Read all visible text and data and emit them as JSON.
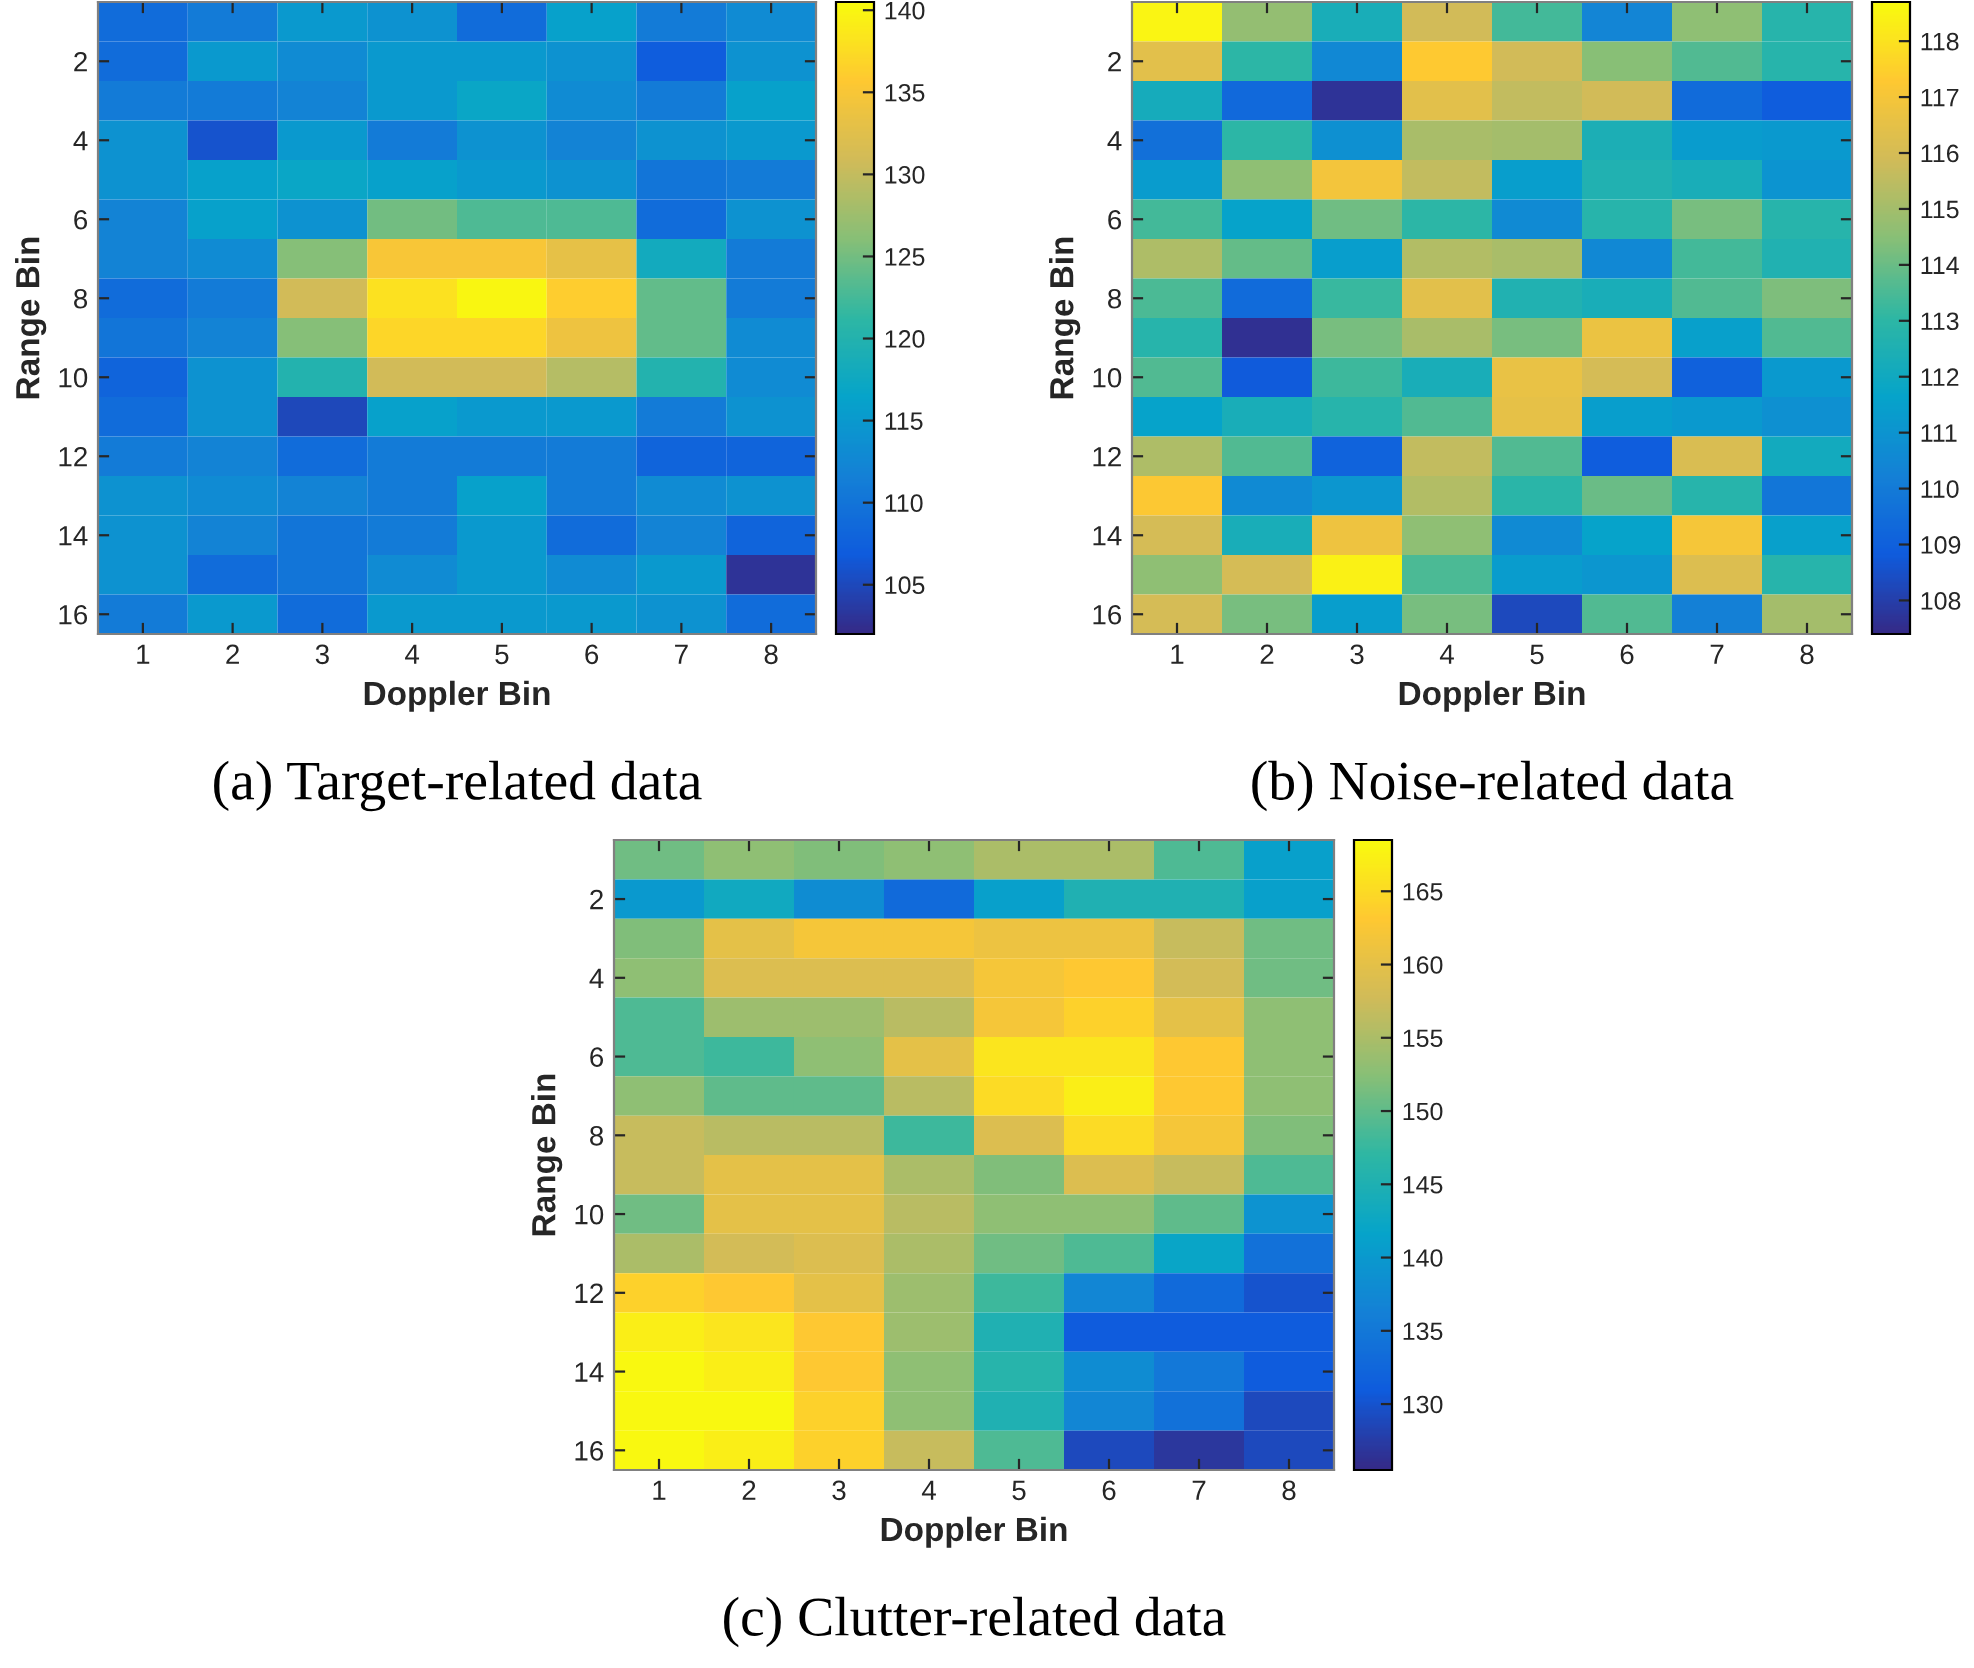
{
  "chart_data": [
    {
      "type": "heatmap",
      "title": "(a) Target-related data",
      "xlabel": "Doppler Bin",
      "ylabel": "Range Bin",
      "categories": [
        "1",
        "2",
        "3",
        "4",
        "5",
        "6",
        "7",
        "8"
      ],
      "y_categories": [
        null,
        "2",
        null,
        "4",
        null,
        "6",
        null,
        "8",
        null,
        "10",
        null,
        "12",
        null,
        "14",
        null,
        "16"
      ],
      "cells": [
        [
          109,
          111,
          115,
          114,
          109,
          116,
          111,
          113
        ],
        [
          109,
          115,
          113,
          115,
          115,
          114,
          107,
          114
        ],
        [
          111,
          111,
          112,
          115,
          117,
          113,
          111,
          116
        ],
        [
          114,
          106,
          115,
          111,
          114,
          112,
          114,
          115
        ],
        [
          114,
          116,
          117,
          116,
          115,
          114,
          110,
          111
        ],
        [
          112,
          116,
          114,
          125,
          123,
          123,
          109,
          114
        ],
        [
          112,
          113,
          126,
          135,
          135,
          133,
          118,
          111
        ],
        [
          109,
          111,
          131,
          138,
          140,
          136,
          124,
          111
        ],
        [
          110,
          112,
          126,
          137,
          137,
          134,
          124,
          113
        ],
        [
          108,
          114,
          120,
          131,
          131,
          129,
          120,
          113
        ],
        [
          109,
          114,
          105,
          116,
          115,
          115,
          111,
          114
        ],
        [
          111,
          112,
          109,
          111,
          111,
          111,
          108,
          108
        ],
        [
          114,
          113,
          112,
          111,
          116,
          111,
          113,
          114
        ],
        [
          114,
          112,
          110,
          111,
          115,
          109,
          112,
          108
        ],
        [
          114,
          109,
          110,
          113,
          115,
          113,
          115,
          103
        ],
        [
          111,
          115,
          109,
          115,
          115,
          115,
          114,
          109
        ]
      ],
      "clim": [
        102,
        140.5
      ],
      "cticks": [
        105,
        110,
        115,
        120,
        125,
        130,
        135,
        140
      ]
    },
    {
      "type": "heatmap",
      "title": "(b) Noise-related data",
      "xlabel": "Doppler Bin",
      "ylabel": "Range Bin",
      "categories": [
        "1",
        "2",
        "3",
        "4",
        "5",
        "6",
        "7",
        "8"
      ],
      "y_categories": [
        null,
        "2",
        null,
        "4",
        null,
        "6",
        null,
        "8",
        null,
        "10",
        null,
        "12",
        null,
        "14",
        null,
        "16"
      ],
      "cells": [
        [
          118.5,
          114.7,
          112.3,
          115.9,
          113.4,
          110.4,
          114.6,
          112.8
        ],
        [
          116.4,
          113.0,
          110.5,
          117.3,
          115.9,
          114.5,
          113.6,
          112.8
        ],
        [
          112.2,
          109.3,
          107.7,
          116.4,
          115.6,
          115.9,
          109.4,
          108.9
        ],
        [
          109.6,
          113.0,
          110.8,
          115.1,
          115.0,
          112.4,
          111.3,
          111.2
        ],
        [
          111.3,
          114.6,
          116.9,
          115.6,
          111.4,
          112.6,
          112.3,
          111.0
        ],
        [
          113.4,
          111.6,
          114.1,
          113.0,
          110.6,
          112.8,
          114.2,
          112.8
        ],
        [
          115.2,
          113.9,
          111.4,
          115.3,
          115.1,
          110.5,
          113.4,
          112.6
        ],
        [
          113.5,
          109.4,
          113.2,
          116.4,
          112.6,
          112.3,
          113.6,
          114.3
        ],
        [
          112.8,
          107.6,
          114.2,
          115.1,
          114.2,
          116.7,
          111.5,
          113.6
        ],
        [
          113.6,
          108.8,
          113.3,
          112.3,
          116.6,
          116.0,
          109.0,
          111.2
        ],
        [
          111.6,
          112.3,
          112.8,
          113.6,
          116.5,
          111.4,
          111.2,
          110.8
        ],
        [
          115.2,
          113.6,
          109.1,
          115.6,
          113.6,
          108.9,
          116.1,
          112.1
        ],
        [
          117.2,
          110.6,
          111.1,
          115.3,
          112.9,
          114.0,
          112.8,
          109.8
        ],
        [
          116.0,
          112.3,
          116.8,
          114.6,
          110.6,
          111.6,
          117.0,
          111.5
        ],
        [
          114.6,
          116.0,
          118.4,
          113.5,
          111.3,
          111.1,
          116.2,
          112.8
        ],
        [
          116.0,
          114.2,
          111.4,
          114.2,
          108.3,
          113.6,
          110.2,
          115.0
        ]
      ],
      "clim": [
        107.4,
        118.7
      ],
      "cticks": [
        108,
        109,
        110,
        111,
        112,
        113,
        114,
        115,
        116,
        117,
        118
      ]
    },
    {
      "type": "heatmap",
      "title": "(c) Clutter-related data",
      "xlabel": "Doppler Bin",
      "ylabel": "Range Bin",
      "categories": [
        "1",
        "2",
        "3",
        "4",
        "5",
        "6",
        "7",
        "8"
      ],
      "y_categories": [
        null,
        "2",
        null,
        "4",
        null,
        "6",
        null,
        "8",
        null,
        "10",
        null,
        "12",
        null,
        "14",
        null,
        "16"
      ],
      "cells": [
        [
          151,
          153,
          152,
          153,
          155,
          155,
          149,
          141
        ],
        [
          140,
          143,
          138,
          133,
          141,
          145,
          145,
          141
        ],
        [
          152,
          160,
          162,
          162,
          161,
          161,
          157,
          151
        ],
        [
          153,
          159,
          159,
          159,
          162,
          163,
          158,
          151
        ],
        [
          149,
          154,
          154,
          156,
          162,
          164,
          160,
          153
        ],
        [
          149,
          148,
          153,
          160,
          166,
          166,
          163,
          153
        ],
        [
          153,
          150,
          150,
          156,
          165,
          167,
          163,
          153
        ],
        [
          157,
          156,
          156,
          148,
          159,
          165,
          162,
          152
        ],
        [
          157,
          160,
          160,
          155,
          152,
          159,
          157,
          149
        ],
        [
          151,
          160,
          160,
          156,
          153,
          153,
          150,
          139
        ],
        [
          155,
          158,
          159,
          155,
          151,
          149,
          142,
          134
        ],
        [
          164,
          163,
          160,
          154,
          148,
          137,
          133,
          130
        ],
        [
          167,
          166,
          163,
          154,
          145,
          131,
          131,
          131
        ],
        [
          168,
          167,
          163,
          153,
          146,
          138,
          135,
          131
        ],
        [
          168,
          168,
          164,
          153,
          145,
          137,
          134,
          129
        ],
        [
          168,
          167,
          164,
          157,
          149,
          129,
          127,
          129
        ]
      ],
      "clim": [
        125.5,
        168.5
      ],
      "cticks": [
        130,
        135,
        140,
        145,
        150,
        155,
        160,
        165
      ]
    }
  ]
}
